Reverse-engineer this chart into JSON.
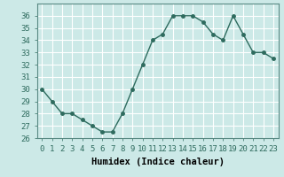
{
  "x": [
    0,
    1,
    2,
    3,
    4,
    5,
    6,
    7,
    8,
    9,
    10,
    11,
    12,
    13,
    14,
    15,
    16,
    17,
    18,
    19,
    20,
    21,
    22,
    23
  ],
  "y": [
    30,
    29,
    28,
    28,
    27.5,
    27,
    26.5,
    26.5,
    28,
    30,
    32,
    34,
    34.5,
    36,
    36,
    36,
    35.5,
    34.5,
    34,
    36,
    34.5,
    33,
    33,
    32.5
  ],
  "line_color": "#2e6b5e",
  "marker": "o",
  "marker_size": 2.5,
  "bg_color": "#cce9e7",
  "grid_color": "#ffffff",
  "xlabel": "Humidex (Indice chaleur)",
  "ylim": [
    26,
    37
  ],
  "xlim": [
    -0.5,
    23.5
  ],
  "yticks": [
    26,
    27,
    28,
    29,
    30,
    31,
    32,
    33,
    34,
    35,
    36
  ],
  "xticks": [
    0,
    1,
    2,
    3,
    4,
    5,
    6,
    7,
    8,
    9,
    10,
    11,
    12,
    13,
    14,
    15,
    16,
    17,
    18,
    19,
    20,
    21,
    22,
    23
  ],
  "tick_label_fontsize": 6.5,
  "xlabel_fontsize": 7.5
}
